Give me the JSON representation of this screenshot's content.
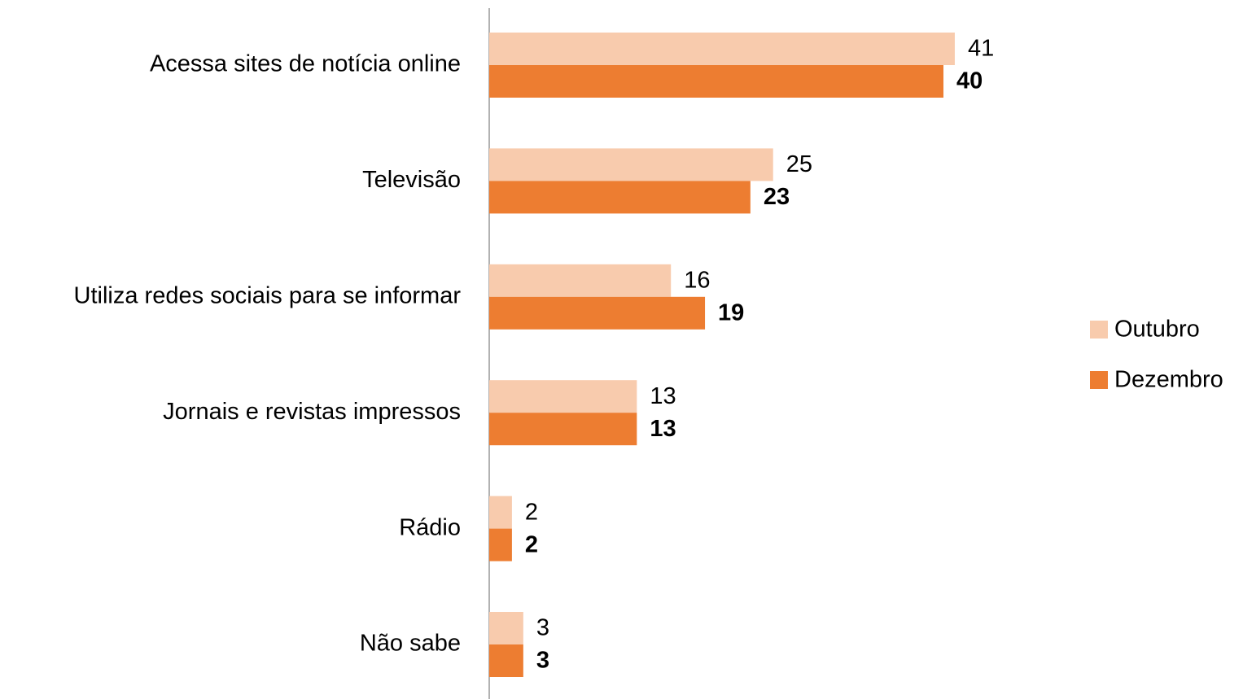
{
  "chart_data": {
    "type": "bar",
    "orientation": "horizontal",
    "categories": [
      "Acessa sites de notícia online",
      "Televisão",
      "Utiliza redes sociais para se informar",
      "Jornais e revistas impressos",
      "Rádio",
      "Não sabe"
    ],
    "series": [
      {
        "name": "Outubro",
        "color": "#f8cbad",
        "values": [
          41,
          25,
          16,
          13,
          2,
          3
        ]
      },
      {
        "name": "Dezembro",
        "color": "#ed7d31",
        "values": [
          40,
          23,
          19,
          13,
          2,
          3
        ]
      }
    ],
    "legend": "right"
  }
}
